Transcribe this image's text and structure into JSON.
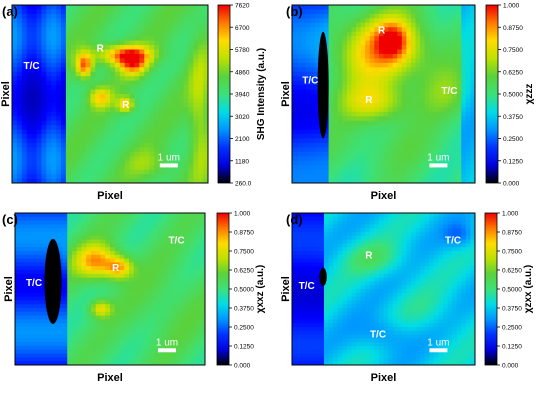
{
  "chart_data": [
    {
      "type": "heatmap",
      "panel_label": "(a)",
      "xlabel": "Pixel",
      "ylabel": "Pixel",
      "colorbar_label": "SHG Intensity (a.u.)",
      "colorbar_ticks": [
        "7620",
        "6700",
        "5780",
        "4860",
        "3940",
        "3020",
        "2100",
        "1180",
        "260.0"
      ],
      "colorbar_range": [
        260.0,
        7620
      ],
      "scalebar_label": "1 um",
      "region_labels": [
        "T/C",
        "R",
        "R"
      ],
      "levels_description": "low values at left edge columns (blue), mid green field, high (red) diagonal streaks"
    },
    {
      "type": "heatmap",
      "panel_label": "(b)",
      "xlabel": "Pixel",
      "ylabel": "Pixel",
      "colorbar_label": "χzzz",
      "colorbar_ticks": [
        "1.000",
        "0.8750",
        "0.7500",
        "0.6250",
        "0.5000",
        "0.3750",
        "0.2500",
        "0.1250",
        "0.000"
      ],
      "colorbar_range": [
        0,
        1
      ],
      "scalebar_label": "1 um",
      "region_labels": [
        "T/C",
        "R",
        "R",
        "T/C"
      ]
    },
    {
      "type": "heatmap",
      "panel_label": "(c)",
      "xlabel": "Pixel",
      "ylabel": "Pixel",
      "colorbar_label": "χxxz (a.u.)",
      "colorbar_ticks": [
        "1.000",
        "0.8750",
        "0.7500",
        "0.6250",
        "0.5000",
        "0.3750",
        "0.2500",
        "0.1250",
        "0.000"
      ],
      "colorbar_range": [
        0,
        1
      ],
      "scalebar_label": "1 um",
      "region_labels": [
        "T/C",
        "R",
        "T/C"
      ]
    },
    {
      "type": "heatmap",
      "panel_label": "(d)",
      "xlabel": "Pixel",
      "ylabel": "Pixel",
      "colorbar_label": "χzxx (a.u.)",
      "colorbar_ticks": [
        "1.000",
        "0.8750",
        "0.7500",
        "0.6250",
        "0.5000",
        "0.3750",
        "0.2500",
        "0.1250",
        "0.000"
      ],
      "colorbar_range": [
        0,
        1
      ],
      "scalebar_label": "1 um",
      "region_labels": [
        "T/C",
        "R",
        "T/C",
        "T/C"
      ]
    }
  ],
  "colors": {
    "colormap": [
      "#000000",
      "#0000ff",
      "#00a0ff",
      "#00e0e0",
      "#40e080",
      "#60d040",
      "#c0e000",
      "#ffe000",
      "#ff8000",
      "#ff0000"
    ],
    "mask": "#000000",
    "scalebar": "#ffffff"
  }
}
